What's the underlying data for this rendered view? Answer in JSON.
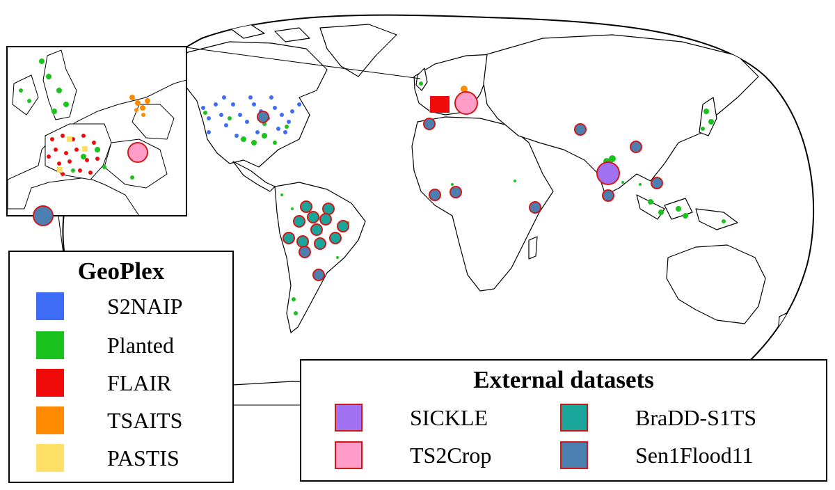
{
  "colors": {
    "S2NAIP": "#3f6cf5",
    "Planted": "#19c21c",
    "FLAIR": "#f00a0a",
    "TSAITS": "#ff8a00",
    "PASTIS": "#ffe066",
    "SICKLE": "#a072f2",
    "TS2Crop": "#ff9cc8",
    "BraDD-S1TS": "#1aa59a",
    "Sen1Flood11": "#4a7fb0",
    "marker_outline": "#d01818"
  },
  "geoplex_legend": {
    "title": "GeoPlex",
    "items": [
      {
        "label": "S2NAIP",
        "color": "#3f6cf5"
      },
      {
        "label": "Planted",
        "color": "#19c21c"
      },
      {
        "label": "FLAIR",
        "color": "#f00a0a"
      },
      {
        "label": "TSAITS",
        "color": "#ff8a00"
      },
      {
        "label": "PASTIS",
        "color": "#ffe066"
      }
    ]
  },
  "external_legend": {
    "title": "External datasets",
    "items": [
      {
        "label": "SICKLE",
        "color": "#a072f2"
      },
      {
        "label": "BraDD-S1TS",
        "color": "#1aa59a"
      },
      {
        "label": "TS2Crop",
        "color": "#ff9cc8"
      },
      {
        "label": "Sen1Flood11",
        "color": "#4a7fb0"
      }
    ]
  },
  "inset": {
    "region": "Western Europe"
  }
}
